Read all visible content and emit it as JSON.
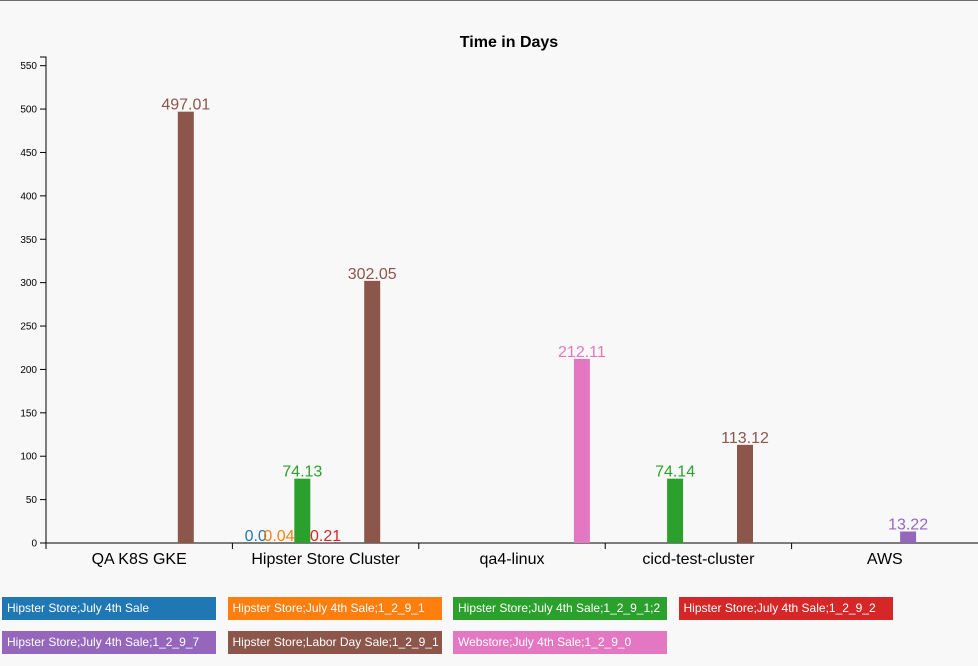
{
  "chart_data": {
    "type": "bar",
    "title": "Time in Days",
    "xlabel": "",
    "ylabel": "",
    "ylim": [
      0,
      560
    ],
    "y_ticks": [
      0,
      50,
      100,
      150,
      200,
      250,
      300,
      350,
      400,
      450,
      500,
      550
    ],
    "categories": [
      "QA K8S GKE",
      "Hipster Store Cluster",
      "qa4-linux",
      "cicd-test-cluster",
      "AWS"
    ],
    "grid": false,
    "legend_position": "bottom",
    "series": [
      {
        "name": "Hipster Store;July 4th Sale",
        "color": "#1f77b4",
        "values": [
          null,
          0.0,
          null,
          null,
          null
        ],
        "labels": [
          null,
          "0.0",
          null,
          null,
          null
        ]
      },
      {
        "name": "Hipster Store;July 4th Sale;1_2_9_1",
        "color": "#ff7f0e",
        "values": [
          null,
          0.04,
          null,
          null,
          null
        ],
        "labels": [
          null,
          "0.04",
          null,
          null,
          null
        ]
      },
      {
        "name": "Hipster Store;July 4th Sale;1_2_9_1;2",
        "color": "#2ca02c",
        "values": [
          null,
          74.13,
          null,
          74.14,
          null
        ],
        "labels": [
          null,
          "74.13",
          null,
          "74.14",
          null
        ]
      },
      {
        "name": "Hipster Store;July 4th Sale;1_2_9_2",
        "color": "#d62728",
        "values": [
          null,
          0.21,
          null,
          null,
          null
        ],
        "labels": [
          null,
          "0.21",
          null,
          null,
          null
        ]
      },
      {
        "name": "Hipster Store;July 4th Sale;1_2_9_7",
        "color": "#9467bd",
        "values": [
          null,
          null,
          null,
          null,
          13.22
        ],
        "labels": [
          null,
          null,
          null,
          null,
          "13.22"
        ]
      },
      {
        "name": "Hipster Store;Labor Day Sale;1_2_9_1",
        "color": "#8c564b",
        "values": [
          497.01,
          302.05,
          null,
          113.12,
          null
        ],
        "labels": [
          "497.01",
          "302.05",
          null,
          "113.12",
          null
        ]
      },
      {
        "name": "Webstore;July 4th Sale;1_2_9_0",
        "color": "#e377c2",
        "values": [
          null,
          null,
          212.11,
          null,
          null
        ],
        "labels": [
          null,
          null,
          "212.11",
          null,
          null
        ]
      }
    ]
  }
}
